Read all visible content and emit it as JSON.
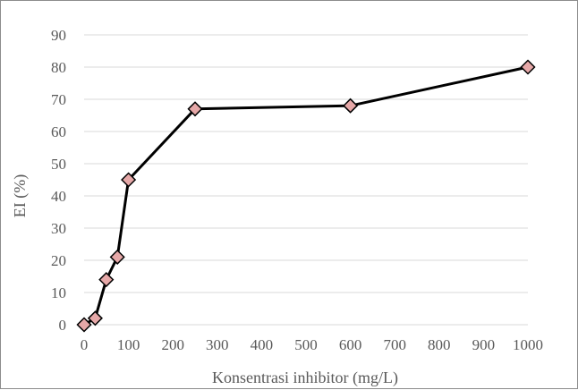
{
  "chart_data": {
    "type": "scatter",
    "title": "",
    "xlabel": "Konsentrasi inhibitor (mg/L)",
    "ylabel": "EI (%)",
    "xlim": [
      0,
      1000
    ],
    "ylim": [
      0,
      90
    ],
    "xticks": [
      0,
      100,
      200,
      300,
      400,
      500,
      600,
      700,
      800,
      900,
      1000
    ],
    "yticks": [
      0,
      10,
      20,
      30,
      40,
      50,
      60,
      70,
      80,
      90
    ],
    "grid": "horizontal",
    "legend": "none",
    "series": [
      {
        "x": [
          0,
          25,
          50,
          75,
          100,
          250,
          600,
          1000
        ],
        "y": [
          0,
          2,
          14,
          21,
          45,
          67,
          68,
          80
        ],
        "line_color": "#000000",
        "marker": "diamond",
        "marker_fill": "#e6a8a8",
        "marker_edge": "#000000"
      }
    ]
  }
}
